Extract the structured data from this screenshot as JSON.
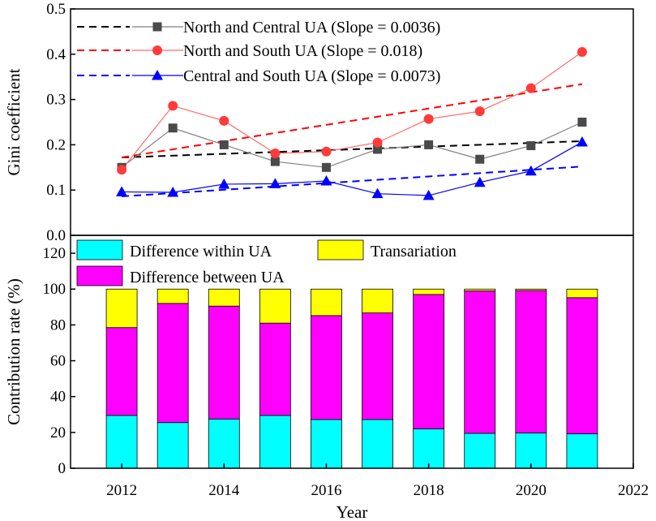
{
  "chart_data": [
    {
      "type": "line",
      "title": "",
      "ylabel": "Gini coefficient",
      "xlabel": "",
      "xlim": [
        2011,
        2022
      ],
      "ylim": [
        0.0,
        0.5
      ],
      "y_ticks": [
        0.0,
        0.1,
        0.2,
        0.3,
        0.4,
        0.5
      ],
      "y_tick_labels": [
        "0.0",
        "0.1",
        "0.2",
        "0.3",
        "0.4",
        "0.5"
      ],
      "x": [
        2012,
        2013,
        2014,
        2015,
        2016,
        2017,
        2018,
        2019,
        2020,
        2021
      ],
      "series": [
        {
          "name": "North and Central UA (Slope = 0.0036)",
          "marker": "square",
          "color": "#808080",
          "marker_color": "#4a4a4a",
          "trend_color": "#000000",
          "values": [
            0.15,
            0.237,
            0.2,
            0.163,
            0.15,
            0.19,
            0.2,
            0.168,
            0.198,
            0.25
          ],
          "trend": [
            0.172,
            0.208
          ]
        },
        {
          "name": "North and South UA (Slope = 0.018)",
          "marker": "circle",
          "color": "#ff6b6b",
          "marker_color": "#ff3b3b",
          "trend_color": "#ff0000",
          "values": [
            0.145,
            0.286,
            0.253,
            0.181,
            0.185,
            0.205,
            0.257,
            0.274,
            0.325,
            0.405
          ],
          "trend": [
            0.172,
            0.334
          ]
        },
        {
          "name": "Central and South UA (Slope = 0.0073)",
          "marker": "triangle",
          "color": "#0000ff",
          "marker_color": "#0000ff",
          "trend_color": "#0000ff",
          "values": [
            0.096,
            0.095,
            0.113,
            0.114,
            0.12,
            0.092,
            0.088,
            0.117,
            0.142,
            0.206
          ],
          "trend": [
            0.086,
            0.152
          ]
        }
      ]
    },
    {
      "type": "bar",
      "stacked": true,
      "xlabel": "Year",
      "ylabel": "Contribution rate (%)",
      "xlim": [
        2011,
        2022
      ],
      "ylim": [
        0,
        130
      ],
      "x_ticks": [
        2012,
        2014,
        2016,
        2018,
        2020,
        2022
      ],
      "x_tick_labels": [
        "2012",
        "2014",
        "2016",
        "2018",
        "2020",
        "2022"
      ],
      "y_ticks": [
        0,
        20,
        40,
        60,
        80,
        100,
        120
      ],
      "y_tick_labels": [
        "0",
        "20",
        "40",
        "60",
        "80",
        "100",
        "120"
      ],
      "categories": [
        2012,
        2013,
        2014,
        2015,
        2016,
        2017,
        2018,
        2019,
        2020,
        2021
      ],
      "series": [
        {
          "name": "Difference within UA",
          "color": "#00ffff",
          "values": [
            29.5,
            25.5,
            27.5,
            29.5,
            27.2,
            27.2,
            22.0,
            19.5,
            19.7,
            19.2
          ]
        },
        {
          "name": "Difference between UA",
          "color": "#ff00ff",
          "values": [
            49.0,
            66.5,
            63.0,
            51.5,
            58.0,
            59.5,
            75.0,
            79.5,
            79.5,
            76.0
          ]
        },
        {
          "name": "Transariation",
          "color": "#ffff00",
          "values": [
            21.5,
            8.0,
            9.5,
            19.0,
            14.8,
            13.3,
            3.0,
            1.0,
            0.8,
            4.8
          ]
        }
      ]
    }
  ]
}
